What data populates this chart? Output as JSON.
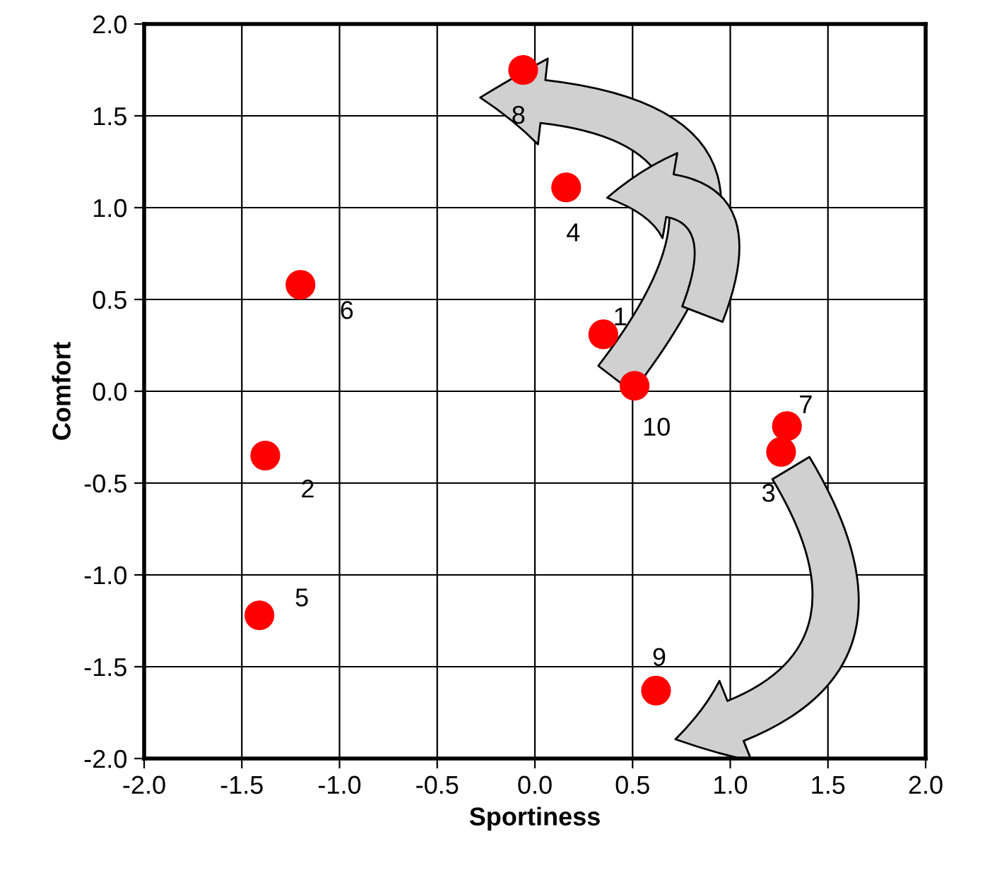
{
  "chart_data": {
    "type": "scatter",
    "xlabel": "Sportiness",
    "ylabel": "Comfort",
    "x": [
      0.35,
      -1.38,
      1.26,
      0.16,
      -1.41,
      -1.2,
      1.29,
      -0.06,
      0.62,
      0.51
    ],
    "series": [
      {
        "color": "#ff0000",
        "values": [
          0.31,
          -0.35,
          -0.33,
          1.11,
          -1.22,
          0.58,
          -0.19,
          1.75,
          -1.63,
          0.03
        ]
      }
    ],
    "marker": "circle",
    "grid": true,
    "legend": false,
    "xlim": [
      -2,
      2
    ],
    "ylim": [
      -2,
      2
    ],
    "xticks": [
      {
        "value": -2,
        "label": "-2.0"
      },
      {
        "value": -1.5,
        "label": "-1.5"
      },
      {
        "value": -1,
        "label": "-1.0"
      },
      {
        "value": -0.5,
        "label": "-0.5"
      },
      {
        "value": 0,
        "label": "0.0"
      },
      {
        "value": 0.5,
        "label": "0.5"
      },
      {
        "value": 1,
        "label": "1.0"
      },
      {
        "value": 1.5,
        "label": "1.5"
      },
      {
        "value": 2,
        "label": "2.0"
      }
    ],
    "yticks": [
      {
        "value": -2,
        "label": "-2.0"
      },
      {
        "value": -1.5,
        "label": "-1.5"
      },
      {
        "value": -1,
        "label": "-1.0"
      },
      {
        "value": -0.5,
        "label": "-0.5"
      },
      {
        "value": 0,
        "label": "0.0"
      },
      {
        "value": 0.5,
        "label": "0.5"
      },
      {
        "value": 1,
        "label": "1.0"
      },
      {
        "value": 1.5,
        "label": "1.5"
      },
      {
        "value": 2,
        "label": "2.0"
      }
    ],
    "annotations": [
      {
        "text": "1",
        "x": 0.35,
        "y": 0.31
      },
      {
        "text": "2",
        "x": -1.38,
        "y": -0.35
      },
      {
        "text": "3",
        "x": 1.26,
        "y": -0.33
      },
      {
        "text": "4",
        "x": 0.16,
        "y": 1.11
      },
      {
        "text": "5",
        "x": -1.41,
        "y": -1.22
      },
      {
        "text": "6",
        "x": -1.2,
        "y": 0.58
      },
      {
        "text": "7",
        "x": 1.29,
        "y": -0.19
      },
      {
        "text": "8",
        "x": -0.06,
        "y": 1.75
      },
      {
        "text": "9",
        "x": 0.62,
        "y": -1.63
      },
      {
        "text": "10",
        "x": 0.51,
        "y": 0.03
      }
    ]
  }
}
